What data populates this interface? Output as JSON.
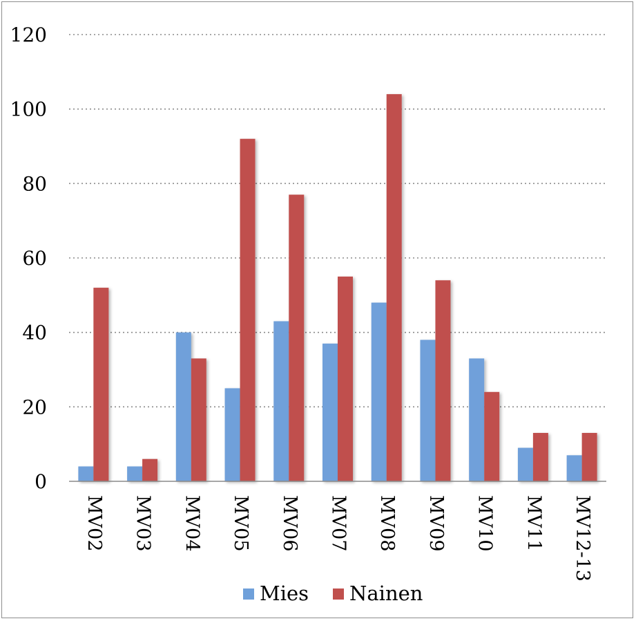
{
  "chart_data": {
    "type": "bar",
    "categories": [
      "MV02",
      "MV03",
      "MV04",
      "MV05",
      "MV06",
      "MV07",
      "MV08",
      "MV09",
      "MV10",
      "MV11",
      "MV12-13"
    ],
    "series": [
      {
        "name": "Mies",
        "color": "#6fa0da",
        "values": [
          4,
          4,
          40,
          25,
          43,
          37,
          48,
          38,
          33,
          9,
          7
        ]
      },
      {
        "name": "Nainen",
        "color": "#c0504d",
        "values": [
          52,
          6,
          33,
          92,
          77,
          55,
          104,
          54,
          24,
          13,
          13
        ]
      }
    ],
    "ylim": [
      0,
      120
    ],
    "yticks": [
      "0",
      "20",
      "40",
      "60",
      "80",
      "100",
      "120"
    ],
    "grid": true,
    "legend_position": "bottom"
  }
}
